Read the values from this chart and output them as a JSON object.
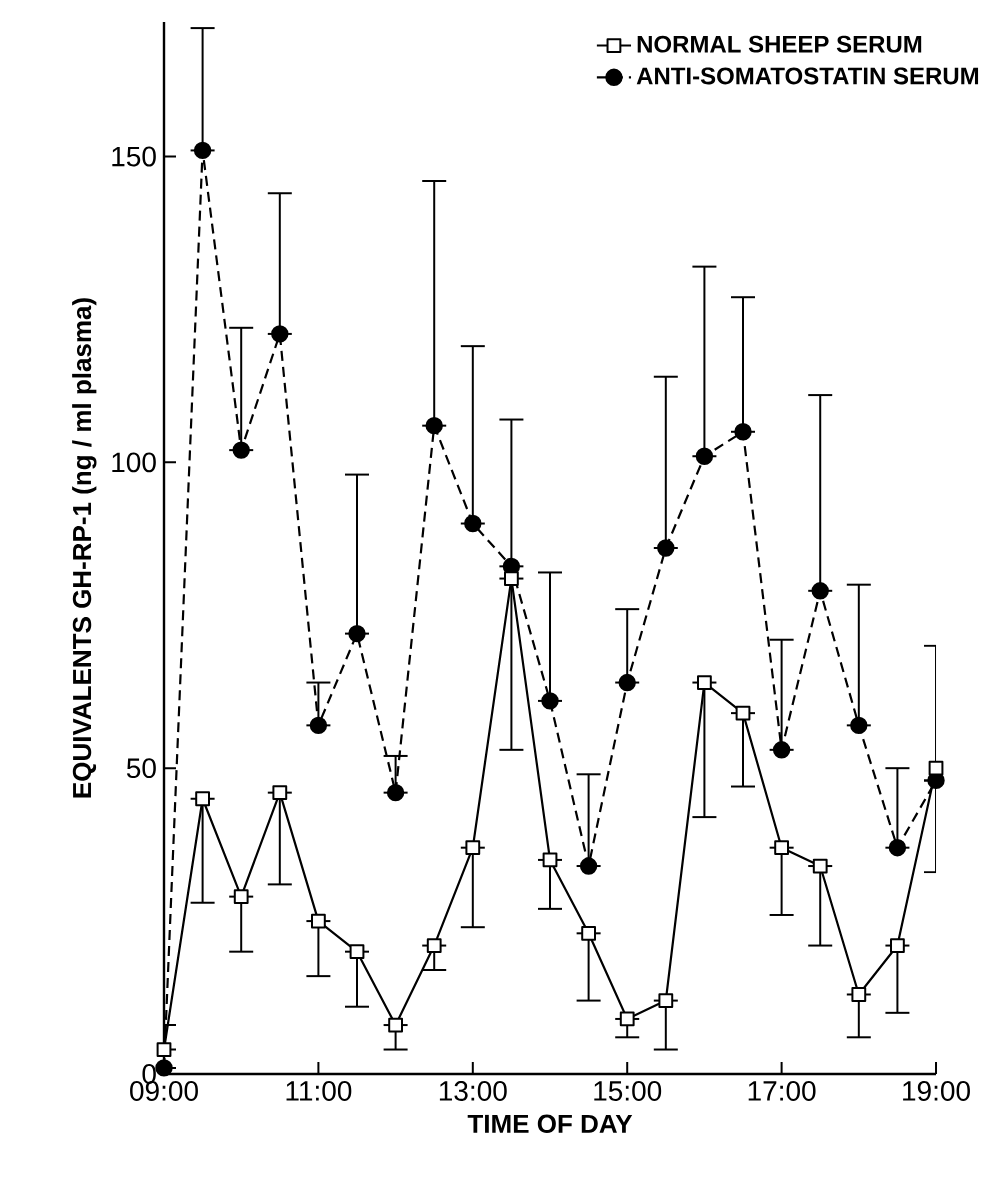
{
  "chart_data": {
    "type": "line",
    "xlabel": "TIME OF DAY",
    "ylabel": "EQUIVALENTS GH-RP-1  (ng / ml plasma)",
    "x": [
      9,
      9.5,
      10,
      10.5,
      11,
      11.5,
      12,
      12.5,
      13,
      13.5,
      14,
      14.5,
      15,
      15.5,
      16,
      16.5,
      17,
      17.5,
      18,
      18.5,
      19
    ],
    "xlim": [
      9,
      19
    ],
    "xticks": [
      {
        "value": 9,
        "label": "09:00"
      },
      {
        "value": 11,
        "label": "11:00"
      },
      {
        "value": 13,
        "label": "13:00"
      },
      {
        "value": 15,
        "label": "15:00"
      },
      {
        "value": 17,
        "label": "17:00"
      },
      {
        "value": 19,
        "label": "19:00"
      }
    ],
    "ylim": [
      0,
      172
    ],
    "yticks": [
      0,
      50,
      100,
      150
    ],
    "legend": "top right",
    "grid": false,
    "series": [
      {
        "name": "NORMAL SHEEP SERUM",
        "color": "#000000",
        "marker": "square",
        "line_style": "solid",
        "values": [
          4,
          45,
          29,
          46,
          25,
          20,
          8,
          21,
          37,
          81,
          35,
          23,
          9,
          12,
          64,
          59,
          37,
          34,
          13,
          21,
          50
        ],
        "errors": [
          [
            4,
            8
          ],
          [
            28,
            45
          ],
          [
            20,
            29
          ],
          [
            31,
            46
          ],
          [
            16,
            25
          ],
          [
            11,
            20
          ],
          [
            4,
            8
          ],
          [
            17,
            21
          ],
          [
            24,
            37
          ],
          [
            53,
            81
          ],
          [
            27,
            35
          ],
          [
            12,
            23
          ],
          [
            6,
            9
          ],
          [
            4,
            12
          ],
          [
            42,
            64
          ],
          [
            47,
            59
          ],
          [
            26,
            37
          ],
          [
            21,
            34
          ],
          [
            6,
            13
          ],
          [
            10,
            21
          ],
          [
            33,
            70
          ]
        ]
      },
      {
        "name": "ANTI-SOMATOSTATIN SERUM",
        "color": "#000000",
        "marker": "circle",
        "line_style": "dashed",
        "values": [
          1,
          151,
          102,
          121,
          57,
          72,
          46,
          106,
          90,
          83,
          61,
          34,
          64,
          86,
          101,
          105,
          53,
          79,
          57,
          37,
          48
        ],
        "errors": [
          null,
          [
            151,
            171
          ],
          [
            102,
            122
          ],
          [
            121,
            144
          ],
          [
            57,
            64
          ],
          [
            72,
            98
          ],
          [
            46,
            52
          ],
          [
            106,
            146
          ],
          [
            90,
            119
          ],
          [
            83,
            107
          ],
          [
            61,
            82
          ],
          [
            34,
            49
          ],
          [
            64,
            76
          ],
          [
            86,
            114
          ],
          [
            101,
            132
          ],
          [
            105,
            127
          ],
          [
            53,
            71
          ],
          [
            79,
            111
          ],
          [
            57,
            80
          ],
          [
            37,
            50
          ],
          null
        ]
      }
    ]
  }
}
